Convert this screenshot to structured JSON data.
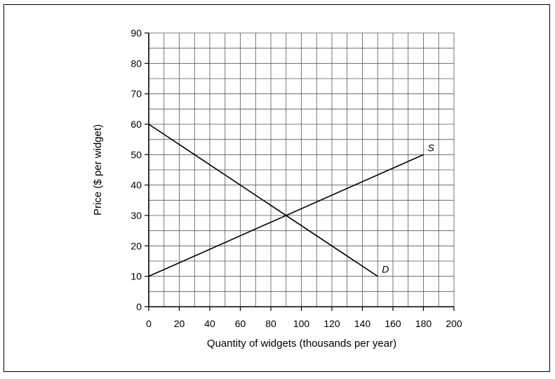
{
  "chart_data": {
    "type": "line",
    "title": "",
    "xlabel": "Quantity of widgets (thousands per year)",
    "ylabel": "Price ($ per widget)",
    "xlim": [
      0,
      200
    ],
    "ylim": [
      0,
      90
    ],
    "x_ticks": [
      0,
      20,
      40,
      60,
      80,
      100,
      120,
      140,
      160,
      180,
      200
    ],
    "y_ticks": [
      0,
      10,
      20,
      30,
      40,
      50,
      60,
      70,
      80,
      90
    ],
    "x_tick_labels": [
      "0",
      "20",
      "40",
      "60",
      "80",
      "100",
      "120",
      "140",
      "160",
      "180",
      "200"
    ],
    "y_tick_labels": [
      "0",
      "10",
      "20",
      "30",
      "40",
      "50",
      "60",
      "70",
      "80",
      "90"
    ],
    "grid": true,
    "series": [
      {
        "name": "D",
        "points": [
          [
            0,
            60
          ],
          [
            150,
            10
          ]
        ]
      },
      {
        "name": "S",
        "points": [
          [
            0,
            10
          ],
          [
            180,
            50
          ]
        ]
      }
    ]
  }
}
